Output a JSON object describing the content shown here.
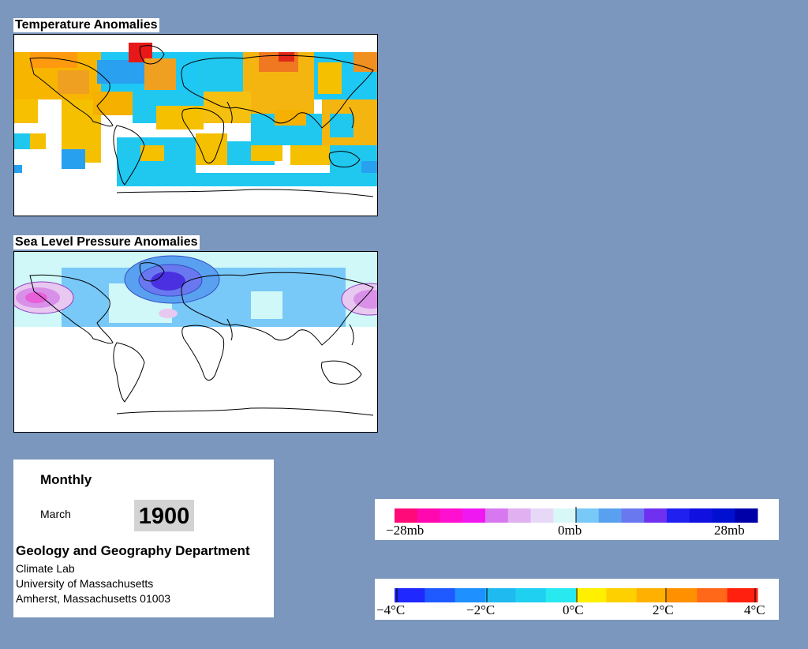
{
  "maps": {
    "temperature": {
      "title": "Temperature Anomalies"
    },
    "pressure": {
      "title": "Sea Level Pressure Anomalies"
    }
  },
  "info": {
    "frequency": "Monthly",
    "month": "March",
    "year": "1900",
    "department": "Geology and Geography Department",
    "lab": "Climate Lab",
    "university": "University of Massachusetts",
    "address": "Amherst, Massachusetts 01003"
  },
  "legends": {
    "pressure": {
      "colors": [
        "#ff0a78",
        "#ff08b0",
        "#ff10d0",
        "#f018f0",
        "#d878f0",
        "#e0b0f0",
        "#e8d8f8",
        "#d8f8f8",
        "#78c8f8",
        "#5aa0f0",
        "#6a78f0",
        "#7030f0",
        "#2020f0",
        "#1010e0",
        "#0010d0",
        "#0000a8"
      ],
      "labels": [
        "−28mb",
        "0mb",
        "28mb"
      ]
    },
    "temperature": {
      "colors": [
        "#1e28ff",
        "#1e5aff",
        "#1e90ff",
        "#1ebaf0",
        "#20d0f0",
        "#28e8f0",
        "#fff000",
        "#ffd000",
        "#ffb000",
        "#ff9000",
        "#ff6818",
        "#ff2010"
      ],
      "labels": [
        "−4°C",
        "−2°C",
        "0°C",
        "2°C",
        "4°C"
      ]
    }
  }
}
